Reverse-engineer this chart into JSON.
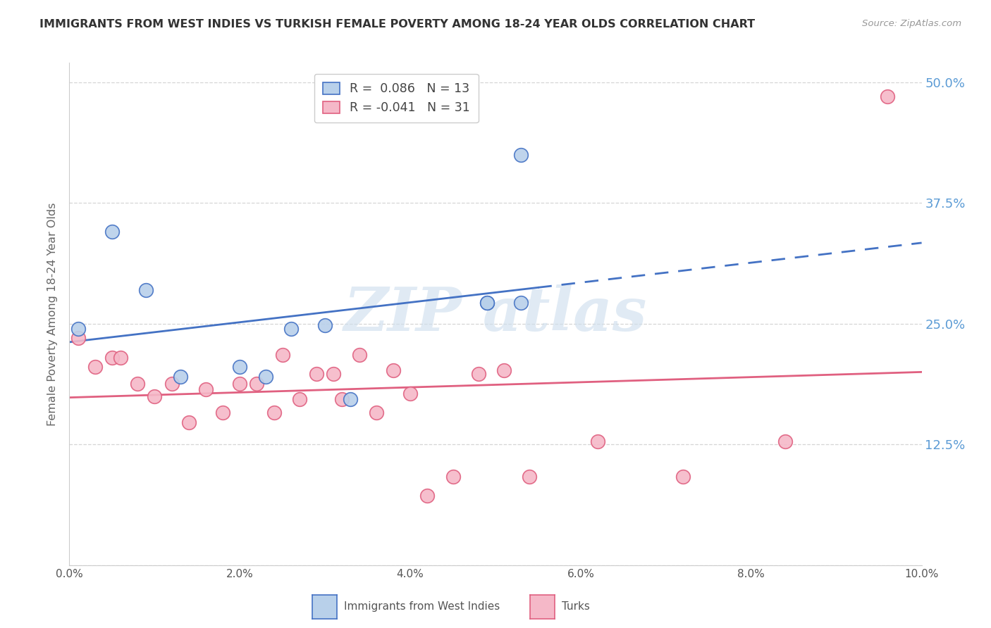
{
  "title": "IMMIGRANTS FROM WEST INDIES VS TURKISH FEMALE POVERTY AMONG 18-24 YEAR OLDS CORRELATION CHART",
  "source": "Source: ZipAtlas.com",
  "ylabel": "Female Poverty Among 18-24 Year Olds",
  "yticks": [
    0.0,
    0.125,
    0.25,
    0.375,
    0.5
  ],
  "ytick_labels": [
    "",
    "12.5%",
    "25.0%",
    "37.5%",
    "50.0%"
  ],
  "xtick_vals": [
    0.0,
    0.02,
    0.04,
    0.06,
    0.08,
    0.1
  ],
  "xtick_labels": [
    "0.0%",
    "2.0%",
    "4.0%",
    "6.0%",
    "8.0%",
    "10.0%"
  ],
  "legend_blue_r": "R =  0.086",
  "legend_blue_n": "N = 13",
  "legend_pink_r": "R = -0.041",
  "legend_pink_n": "N = 31",
  "legend_label_blue": "Immigrants from West Indies",
  "legend_label_pink": "Turks",
  "blue_face_color": "#b8d0ea",
  "pink_face_color": "#f5b8c8",
  "blue_edge_color": "#4472c4",
  "pink_edge_color": "#e06080",
  "blue_line_color": "#4472c4",
  "pink_line_color": "#e06080",
  "right_label_color": "#5b9bd5",
  "title_color": "#333333",
  "ylabel_color": "#666666",
  "background_color": "#ffffff",
  "grid_color": "#cccccc",
  "watermark_color": "#ccdded",
  "xmin": 0.0,
  "xmax": 0.1,
  "ymin": 0.0,
  "ymax": 0.52,
  "blue_points_x": [
    0.001,
    0.005,
    0.009,
    0.013,
    0.02,
    0.023,
    0.026,
    0.03,
    0.033,
    0.049,
    0.049,
    0.053,
    0.053
  ],
  "blue_points_y": [
    0.245,
    0.345,
    0.285,
    0.195,
    0.205,
    0.195,
    0.245,
    0.248,
    0.172,
    0.272,
    0.272,
    0.425,
    0.272
  ],
  "pink_points_x": [
    0.001,
    0.003,
    0.005,
    0.006,
    0.008,
    0.01,
    0.012,
    0.014,
    0.016,
    0.018,
    0.02,
    0.022,
    0.024,
    0.025,
    0.027,
    0.029,
    0.031,
    0.032,
    0.034,
    0.036,
    0.038,
    0.04,
    0.042,
    0.045,
    0.048,
    0.051,
    0.054,
    0.062,
    0.072,
    0.084,
    0.096
  ],
  "pink_points_y": [
    0.235,
    0.205,
    0.215,
    0.215,
    0.188,
    0.175,
    0.188,
    0.148,
    0.182,
    0.158,
    0.188,
    0.188,
    0.158,
    0.218,
    0.172,
    0.198,
    0.198,
    0.172,
    0.218,
    0.158,
    0.202,
    0.178,
    0.072,
    0.092,
    0.198,
    0.202,
    0.092,
    0.128,
    0.092,
    0.128,
    0.485
  ]
}
